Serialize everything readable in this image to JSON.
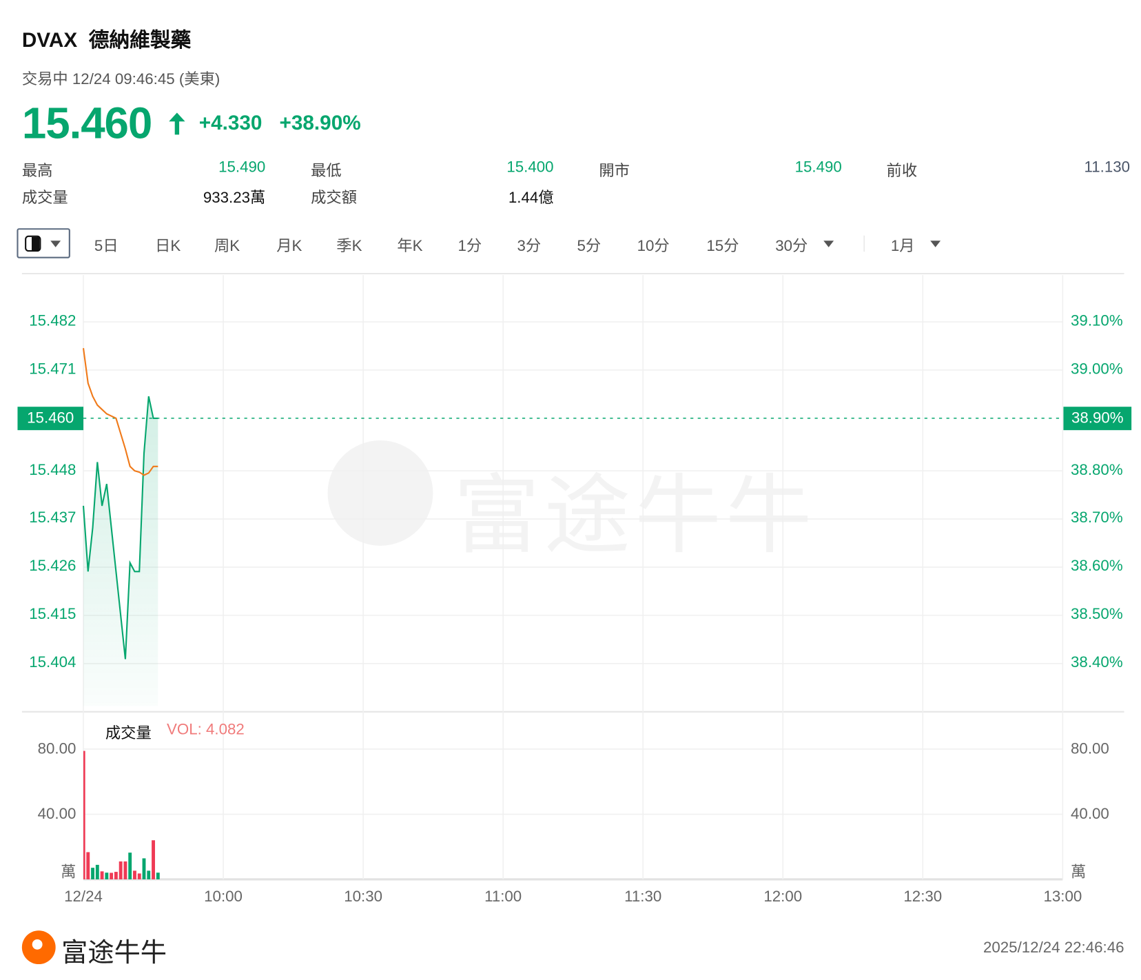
{
  "header": {
    "ticker": "DVAX",
    "name": "德納維製藥",
    "status": "交易中 12/24 09:46:45 (美東)",
    "price": "15.460",
    "change": "+4.330",
    "change_pct": "+38.90%",
    "arrow_icon": "arrow-up-icon",
    "up_color": "#06a66e"
  },
  "stats": [
    {
      "label": "最高",
      "value": "15.490"
    },
    {
      "label": "最低",
      "value": "15.400"
    },
    {
      "label": "開市",
      "value": "15.490"
    },
    {
      "label": "前收",
      "value": "11.130"
    },
    {
      "label": "成交量",
      "value": "933.23萬"
    },
    {
      "label": "成交額",
      "value": "1.44億"
    }
  ],
  "toolbar": {
    "chart_type_icon": "candle-type-icon",
    "tabs": [
      "5日",
      "日K",
      "周K",
      "月K",
      "季K",
      "年K",
      "1分",
      "3分",
      "5分",
      "10分",
      "15分",
      "30分"
    ],
    "range": "1月"
  },
  "chart_data": [
    {
      "type": "line",
      "x": [
        "09:30",
        "09:31",
        "09:32",
        "09:33",
        "09:34",
        "09:35",
        "09:36",
        "09:37",
        "09:38",
        "09:39",
        "09:40",
        "09:41",
        "09:42",
        "09:43",
        "09:44",
        "09:45",
        "09:46"
      ],
      "series": [
        {
          "values": [
            15.44,
            15.425,
            15.435,
            15.45,
            15.44,
            15.445,
            15.435,
            15.425,
            15.415,
            15.405,
            15.427,
            15.425,
            15.425,
            15.452,
            15.465,
            15.46,
            15.46
          ],
          "color": "#06a66e"
        },
        {
          "values": [
            15.476,
            15.468,
            15.465,
            15.463,
            15.462,
            15.461,
            15.4605,
            15.46,
            15.4565,
            15.453,
            15.449,
            15.448,
            15.4477,
            15.447,
            15.4475,
            15.449,
            15.449
          ],
          "color": "#f07a1a"
        }
      ],
      "ylim": [
        15.393,
        15.493
      ],
      "y_ticks": [
        "15.482",
        "15.471",
        "15.448",
        "15.437",
        "15.426",
        "15.415",
        "15.404"
      ],
      "y_tick_values": [
        15.482,
        15.471,
        15.448,
        15.437,
        15.426,
        15.415,
        15.404
      ],
      "pct_ticks": [
        "39.10%",
        "39.00%",
        "38.80%",
        "38.70%",
        "38.60%",
        "38.50%",
        "38.40%"
      ],
      "current_price": "15.460",
      "current_pct": "38.90%",
      "x_ticks": [
        "12/24",
        "10:00",
        "10:30",
        "11:00",
        "11:30",
        "12:00",
        "12:30",
        "13:00"
      ],
      "xlim": [
        "09:30",
        "13:00"
      ],
      "grid": true
    },
    {
      "type": "bar",
      "title": "成交量",
      "vol_label": "VOL: 4.082",
      "unit": "萬",
      "values": [
        78.9,
        16.7,
        7.1,
        8.9,
        4.9,
        4.1,
        4.0,
        4.6,
        11.0,
        11.0,
        16.4,
        5.3,
        3.6,
        12.9,
        5.3,
        24.0,
        4.1
      ],
      "directions": [
        "up",
        "up",
        "down",
        "down",
        "up",
        "down",
        "up",
        "up",
        "up",
        "up",
        "down",
        "up",
        "up",
        "down",
        "down",
        "up",
        "down"
      ],
      "colors": {
        "up": "#ef3a55",
        "down": "#06a66e"
      },
      "y_ticks": [
        "80.00",
        "40.00"
      ],
      "y_tick_values": [
        80,
        40
      ],
      "ylim": [
        0,
        80
      ]
    }
  ],
  "watermark": "富途牛牛",
  "footer": {
    "brand": "富途牛牛",
    "timestamp": "2025/12/24 22:46:46"
  }
}
